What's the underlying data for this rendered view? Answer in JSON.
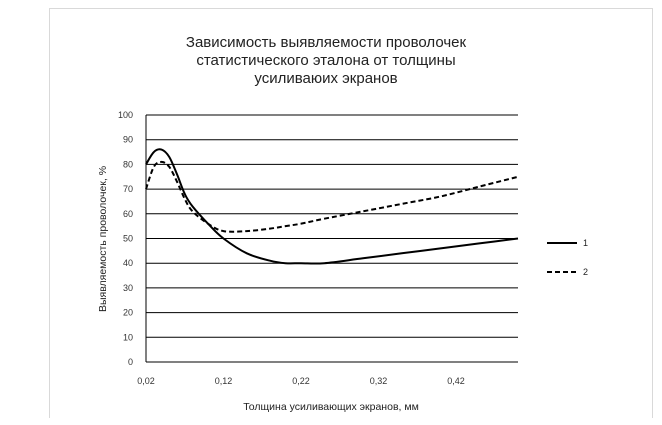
{
  "chart_data": {
    "type": "line",
    "title_lines": [
      "Зависимость выявляемости проволочек",
      "статистического эталона от толщины",
      "усиливаюих экранов"
    ],
    "xlabel": "Толщина усиливающих экранов, мм",
    "ylabel": "Выявляемость проволочек, %",
    "xlim": [
      0.02,
      0.5
    ],
    "ylim": [
      0,
      100
    ],
    "x_ticks": [
      "0,02",
      "0,12",
      "0,22",
      "0,32",
      "0,42"
    ],
    "y_ticks": [
      "0",
      "10",
      "20",
      "30",
      "40",
      "50",
      "60",
      "70",
      "80",
      "90",
      "100"
    ],
    "grid": "horizontal",
    "legend_position": "right",
    "series": [
      {
        "name": "1",
        "style": "solid",
        "x": [
          0.02,
          0.03,
          0.04,
          0.05,
          0.06,
          0.07,
          0.08,
          0.1,
          0.12,
          0.15,
          0.18,
          0.2,
          0.22,
          0.25,
          0.3,
          0.35,
          0.4,
          0.45,
          0.5
        ],
        "y": [
          80,
          85,
          86,
          83,
          76,
          68,
          63,
          56,
          50,
          44,
          41,
          40,
          40,
          40,
          42,
          44,
          46,
          48,
          50
        ]
      },
      {
        "name": "2",
        "style": "dashed",
        "x": [
          0.02,
          0.03,
          0.04,
          0.05,
          0.06,
          0.07,
          0.08,
          0.1,
          0.12,
          0.15,
          0.18,
          0.2,
          0.22,
          0.25,
          0.3,
          0.35,
          0.4,
          0.45,
          0.5
        ],
        "y": [
          70,
          79,
          81,
          79,
          73,
          66,
          61,
          56,
          53,
          53,
          54,
          55,
          56,
          58,
          61,
          64,
          67,
          71,
          75
        ]
      }
    ],
    "colors": {
      "line": "#000000",
      "grid": "#000000",
      "text": "#222222"
    }
  }
}
